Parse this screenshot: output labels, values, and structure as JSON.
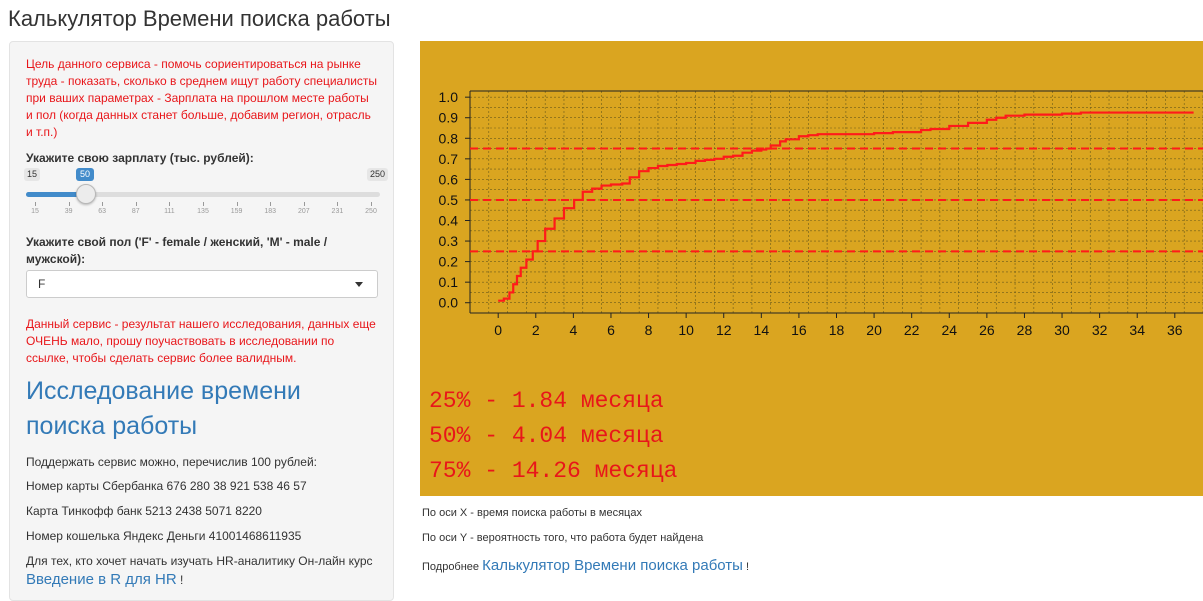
{
  "app": {
    "title": "Калькулятор Времени поиска работы"
  },
  "sidebar": {
    "intro": "Цель данного сервиса - помочь сориентироваться на рынке труда - показать, сколько в среднем ищут работу специалисты при ваших параметрах - Зарплата на прошлом месте работы и пол (когда данных станет больше, добавим регион, отрасль и т.п.)",
    "salary_label": "Укажите свою зарплату (тыс. рублей):",
    "salary_slider": {
      "min": "15",
      "max": "250",
      "value": "50",
      "min_num": 15,
      "max_num": 250,
      "value_num": 50,
      "ticks": [
        "15",
        "39",
        "63",
        "87",
        "111",
        "135",
        "159",
        "183",
        "207",
        "231",
        "250"
      ]
    },
    "gender_label": "Укажите свой пол ('F' - female / женский, 'M' - male / мужской):",
    "gender_value": "F",
    "notice": "Данный сервис - результат нашего исследования, данных еще ОЧЕНЬ мало, прошу поучаствовать в исследовании по ссылке, чтобы сделать сервис более валидным.",
    "research_heading": "Исследование времени поиска работы",
    "support_text": "Поддержать сервис можно, перечислив 100 рублей:",
    "sberbank": "Номер карты Сбербанка 676 280 38 921 538 46 57",
    "tinkoff": "Карта Тинкофф банк 5213 2438 5071 8220",
    "yandex": "Номер кошелька Яндекс Деньги 41001468611935",
    "course_text": "Для тех, кто хочет начать изучать HR-аналитику Он-лайн курс",
    "course_link": "Введение в R для HR",
    "course_suffix": "!"
  },
  "results": {
    "p25": "25% - 1.84 месяца",
    "p50": "50% - 4.04 месяца",
    "p75": "75% - 14.26 месяца"
  },
  "captions": {
    "x_axis": "По оси X - время поиска работы в месяцах",
    "y_axis": "По оси Y - вероятность того, что работа будет найдена",
    "more_prefix": "Подробнее",
    "more_link": "Калькулятор Времени поиска работы",
    "more_suffix": "!"
  },
  "colors": {
    "panel_bg": "#daa520",
    "accent": "#428bca",
    "link": "#337ab7",
    "alert": "#e8161a"
  },
  "chart_data": {
    "type": "line",
    "xlim": [
      -1.5,
      37.5
    ],
    "ylim": [
      -0.05,
      1.03
    ],
    "x_ticks": [
      0,
      2,
      4,
      6,
      8,
      10,
      12,
      14,
      16,
      18,
      20,
      22,
      24,
      26,
      28,
      30,
      32,
      34,
      36
    ],
    "y_ticks": [
      0.0,
      0.1,
      0.2,
      0.3,
      0.4,
      0.5,
      0.6,
      0.7,
      0.8,
      0.9,
      1.0
    ],
    "grid": true,
    "reference_lines": [
      0.25,
      0.5,
      0.75
    ],
    "series": [
      {
        "x": [
          0,
          0.3,
          0.6,
          0.8,
          1.0,
          1.2,
          1.5,
          1.84,
          2.1,
          2.5,
          3.0,
          3.5,
          4.04,
          4.5,
          5.0,
          5.5,
          6.0,
          6.6,
          7.0,
          7.5,
          8.0,
          8.5,
          9.0,
          9.5,
          10.0,
          10.5,
          11.0,
          11.5,
          12.0,
          12.5,
          13.0,
          13.5,
          14.0,
          14.26,
          14.5,
          15.0,
          15.3,
          16.0,
          16.5,
          17.0,
          18.0,
          19.0,
          20.0,
          21.0,
          22.0,
          22.5,
          23.0,
          24.0,
          25.0,
          26.0,
          26.5,
          27.0,
          28.0,
          29.0,
          30.0,
          31.0,
          32.0,
          33.0,
          34.0,
          35.0,
          36.0,
          37.0
        ],
        "y": [
          0.01,
          0.02,
          0.05,
          0.09,
          0.13,
          0.17,
          0.21,
          0.25,
          0.3,
          0.36,
          0.41,
          0.46,
          0.5,
          0.54,
          0.555,
          0.57,
          0.575,
          0.58,
          0.61,
          0.64,
          0.655,
          0.665,
          0.67,
          0.675,
          0.68,
          0.69,
          0.695,
          0.7,
          0.71,
          0.715,
          0.73,
          0.74,
          0.745,
          0.75,
          0.765,
          0.785,
          0.795,
          0.81,
          0.815,
          0.82,
          0.82,
          0.82,
          0.825,
          0.83,
          0.83,
          0.84,
          0.845,
          0.86,
          0.875,
          0.89,
          0.9,
          0.91,
          0.915,
          0.915,
          0.92,
          0.925,
          0.925,
          0.925,
          0.925,
          0.925,
          0.925,
          0.925
        ]
      }
    ]
  }
}
